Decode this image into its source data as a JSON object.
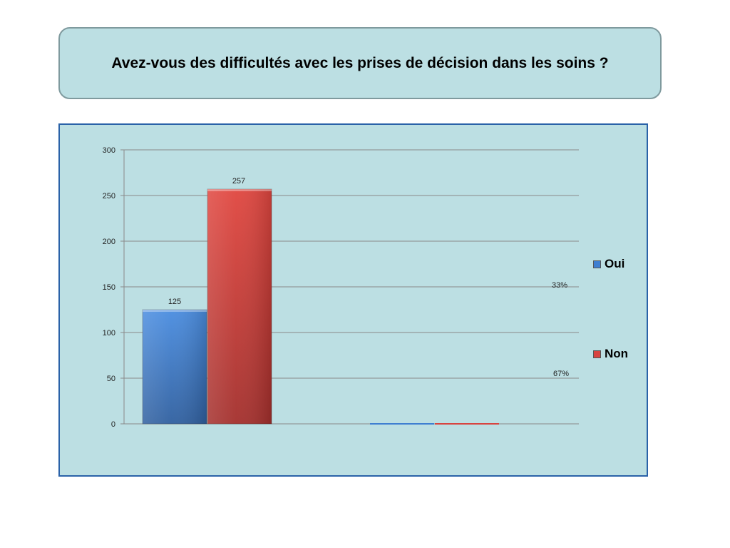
{
  "title": "Avez-vous des difficultés avec les prises de décision dans les soins ?",
  "colors": {
    "oui": "#3f7fd1",
    "non": "#d84440",
    "panel": "#bcdfe3",
    "grid": "#8a8a8a"
  },
  "chart_data": {
    "type": "bar",
    "categories": [
      "",
      ""
    ],
    "series": [
      {
        "name": "Oui",
        "values": [
          125,
          0
        ]
      },
      {
        "name": "Non",
        "values": [
          257,
          0
        ]
      }
    ],
    "data_labels": [
      "125",
      "257"
    ],
    "y_ticks": [
      "0",
      "50",
      "100",
      "150",
      "200",
      "250",
      "300"
    ],
    "ylim": [
      0,
      300
    ],
    "grid": true,
    "legend": "right",
    "annotations": [
      "33%",
      "67%"
    ]
  },
  "legend": {
    "oui_label": "Oui",
    "non_label": "Non"
  }
}
